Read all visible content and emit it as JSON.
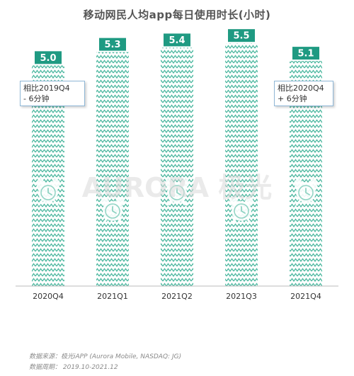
{
  "chart_data": {
    "type": "bar",
    "title": "移动网民人均app每日使用时长(小时)",
    "categories": [
      "2020Q4",
      "2021Q1",
      "2021Q2",
      "2021Q3",
      "2021Q4"
    ],
    "values": [
      5.0,
      5.3,
      5.4,
      5.5,
      5.1
    ],
    "value_labels": [
      "5.0",
      "5.3",
      "5.4",
      "5.5",
      "5.1"
    ],
    "ylim": [
      0,
      6
    ],
    "grid": false,
    "legend": "none",
    "annotations": [
      {
        "line1": "相比2019Q4",
        "line2": "- 6分钟"
      },
      {
        "line1": "相比2020Q4",
        "line2": "+ 6分钟"
      }
    ],
    "bar_color": "#4db8a0",
    "label_color": "#1f9a82",
    "icon": "alarm-clock-icon"
  },
  "watermark": "AURORA 极光",
  "footer": {
    "source": "数据来源：极光iAPP (Aurora Mobile, NASDAQ: JG)",
    "period": "数据周期： 2019.10-2021.12"
  }
}
